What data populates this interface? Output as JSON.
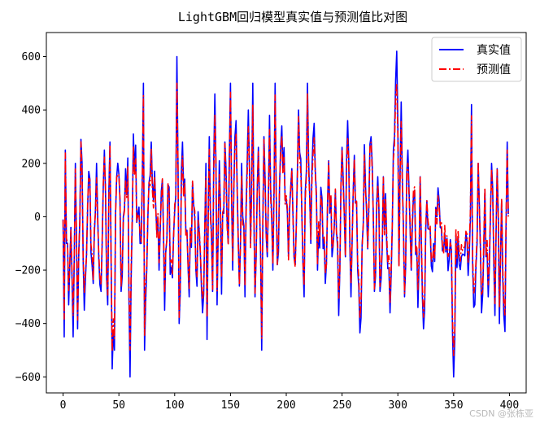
{
  "chart_data": {
    "type": "line",
    "title": "LightGBM回归模型真实值与预测值比对图",
    "xlabel": "",
    "ylabel": "",
    "xlim": [
      -15,
      415
    ],
    "ylim": [
      -660,
      690
    ],
    "xticks": [
      0,
      50,
      100,
      150,
      200,
      250,
      300,
      350,
      400
    ],
    "yticks": [
      -600,
      -400,
      -200,
      0,
      200,
      400,
      600
    ],
    "xtick_labels": [
      "0",
      "50",
      "100",
      "150",
      "200",
      "250",
      "300",
      "350",
      "400"
    ],
    "ytick_labels": [
      "−600",
      "−400",
      "−200",
      "0",
      "200",
      "400",
      "600"
    ],
    "legend_position": "upper-right",
    "grid": false,
    "series": [
      {
        "name": "真实值",
        "color": "#0000ff",
        "style": "solid",
        "x_range": [
          0,
          399
        ],
        "keypoints": [
          [
            0,
            -10
          ],
          [
            1,
            -450
          ],
          [
            2,
            250
          ],
          [
            3,
            -100
          ],
          [
            5,
            -330
          ],
          [
            7,
            -40
          ],
          [
            9,
            -450
          ],
          [
            11,
            200
          ],
          [
            13,
            -420
          ],
          [
            16,
            290
          ],
          [
            19,
            -350
          ],
          [
            23,
            170
          ],
          [
            27,
            -250
          ],
          [
            30,
            200
          ],
          [
            34,
            -280
          ],
          [
            37,
            250
          ],
          [
            40,
            -330
          ],
          [
            42,
            280
          ],
          [
            44,
            -570
          ],
          [
            46,
            -500
          ],
          [
            47,
            10
          ],
          [
            50,
            160
          ],
          [
            52,
            -280
          ],
          [
            55,
            30
          ],
          [
            58,
            220
          ],
          [
            60,
            -600
          ],
          [
            63,
            310
          ],
          [
            67,
            10
          ],
          [
            70,
            -100
          ],
          [
            72,
            500
          ],
          [
            73,
            -500
          ],
          [
            76,
            0
          ],
          [
            79,
            280
          ],
          [
            83,
            40
          ],
          [
            86,
            -200
          ],
          [
            89,
            140
          ],
          [
            91,
            -350
          ],
          [
            94,
            120
          ],
          [
            97,
            -190
          ],
          [
            100,
            20
          ],
          [
            101,
            80
          ],
          [
            102,
            600
          ],
          [
            104,
            -400
          ],
          [
            107,
            280
          ],
          [
            110,
            -50
          ],
          [
            113,
            -300
          ],
          [
            116,
            130
          ],
          [
            119,
            -200
          ],
          [
            122,
            -60
          ],
          [
            125,
            -360
          ],
          [
            128,
            200
          ],
          [
            129,
            -460
          ],
          [
            131,
            300
          ],
          [
            134,
            -280
          ],
          [
            136,
            460
          ],
          [
            138,
            -330
          ],
          [
            140,
            210
          ],
          [
            142,
            -290
          ],
          [
            145,
            280
          ],
          [
            148,
            -100
          ],
          [
            150,
            500
          ],
          [
            152,
            -200
          ],
          [
            155,
            360
          ],
          [
            158,
            -260
          ],
          [
            160,
            200
          ],
          [
            163,
            -300
          ],
          [
            166,
            400
          ],
          [
            168,
            -100
          ],
          [
            170,
            500
          ],
          [
            172,
            -300
          ],
          [
            175,
            260
          ],
          [
            178,
            -500
          ],
          [
            180,
            300
          ],
          [
            183,
            -150
          ],
          [
            185,
            380
          ],
          [
            188,
            -200
          ],
          [
            190,
            500
          ],
          [
            192,
            -180
          ],
          [
            196,
            340
          ],
          [
            199,
            60
          ],
          [
            202,
            -150
          ],
          [
            205,
            180
          ],
          [
            208,
            -180
          ],
          [
            211,
            400
          ],
          [
            214,
            0
          ],
          [
            216,
            -300
          ],
          [
            219,
            500
          ],
          [
            222,
            -100
          ],
          [
            225,
            350
          ],
          [
            228,
            -200
          ],
          [
            231,
            110
          ],
          [
            235,
            -250
          ],
          [
            238,
            210
          ],
          [
            241,
            -150
          ],
          [
            244,
            100
          ],
          [
            247,
            -370
          ],
          [
            250,
            260
          ],
          [
            253,
            -150
          ],
          [
            255,
            360
          ],
          [
            258,
            -300
          ],
          [
            261,
            230
          ],
          [
            264,
            -200
          ],
          [
            267,
            -380
          ],
          [
            270,
            270
          ],
          [
            273,
            -120
          ],
          [
            276,
            300
          ],
          [
            279,
            -280
          ],
          [
            282,
            150
          ],
          [
            284,
            -280
          ],
          [
            287,
            150
          ],
          [
            290,
            -100
          ],
          [
            293,
            -360
          ],
          [
            296,
            250
          ],
          [
            299,
            620
          ],
          [
            301,
            -180
          ],
          [
            303,
            430
          ],
          [
            306,
            -300
          ],
          [
            309,
            250
          ],
          [
            312,
            -200
          ],
          [
            315,
            100
          ],
          [
            318,
            -340
          ],
          [
            320,
            150
          ],
          [
            323,
            -420
          ],
          [
            326,
            60
          ],
          [
            329,
            -50
          ],
          [
            332,
            -100
          ],
          [
            335,
            0
          ],
          [
            338,
            -40
          ],
          [
            341,
            -130
          ],
          [
            344,
            -80
          ],
          [
            348,
            -130
          ],
          [
            350,
            -600
          ],
          [
            352,
            -70
          ],
          [
            355,
            -180
          ],
          [
            358,
            -140
          ],
          [
            361,
            -60
          ],
          [
            363,
            -220
          ],
          [
            365,
            -10
          ],
          [
            366,
            420
          ],
          [
            367,
            -180
          ],
          [
            369,
            -330
          ],
          [
            372,
            200
          ],
          [
            375,
            -360
          ],
          [
            378,
            100
          ],
          [
            381,
            -300
          ],
          [
            384,
            200
          ],
          [
            387,
            -370
          ],
          [
            389,
            180
          ],
          [
            391,
            -400
          ],
          [
            393,
            60
          ],
          [
            396,
            -430
          ],
          [
            398,
            280
          ],
          [
            399,
            10
          ]
        ],
        "samples_json_note": "per-index values generated from keypoints with local variation"
      },
      {
        "name": "预测值",
        "color": "#ff0000",
        "style": "dashdot",
        "x_range": [
          0,
          399
        ],
        "derived_from": "真实值",
        "tracking": 0.88
      }
    ]
  },
  "watermark": "CSDN @张栋亚"
}
